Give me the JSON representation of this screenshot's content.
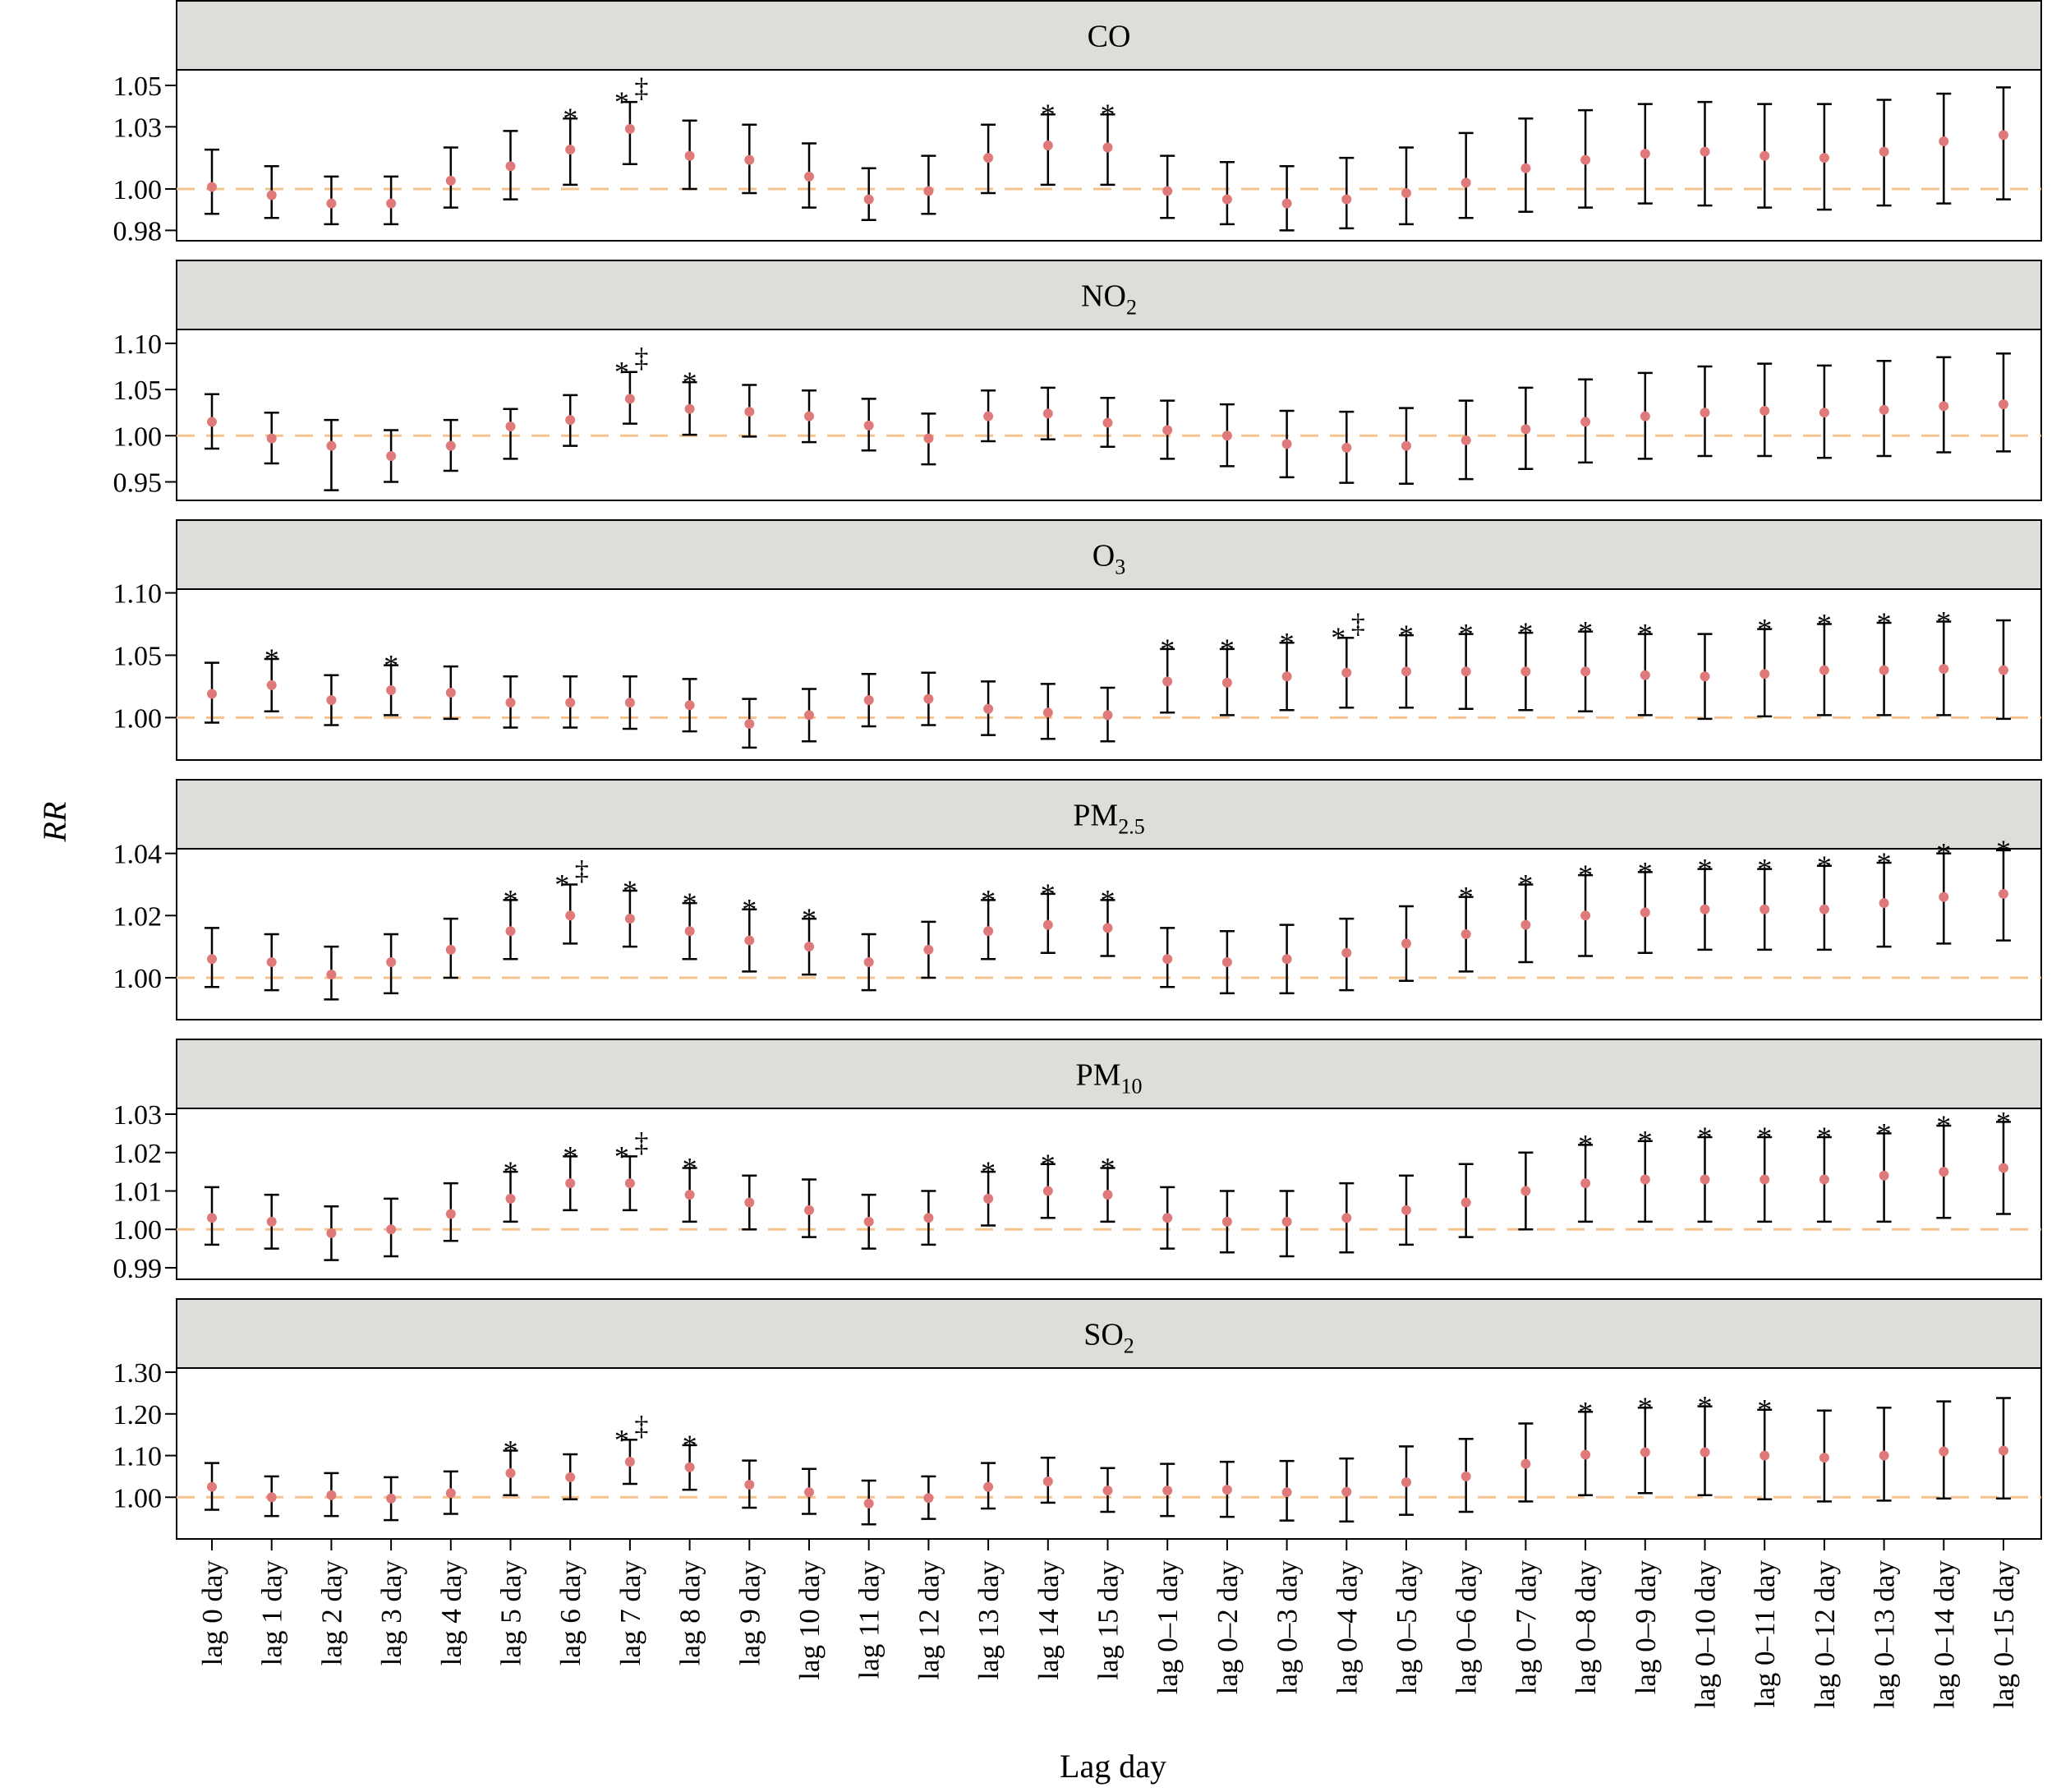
{
  "colors": {
    "header_fill": "#dcdfd9",
    "point": "#e07a7a",
    "reference_line": "#f5c48e",
    "significance_star": "#000000",
    "double_dagger": "#e8191b"
  },
  "chart_data": {
    "type": "errorbar",
    "ylabel": "RR",
    "xlabel": "Lag day",
    "reference_value": 1.0,
    "categories": [
      "lag 0 day",
      "lag 1 day",
      "lag 2 day",
      "lag 3 day",
      "lag 4 day",
      "lag 5 day",
      "lag 6 day",
      "lag 7 day",
      "lag 8 day",
      "lag 9 day",
      "lag 10 day",
      "lag 11 day",
      "lag 12 day",
      "lag 13 day",
      "lag 14 day",
      "lag 15 day",
      "lag 0–1 day",
      "lag 0–2 day",
      "lag 0–3 day",
      "lag 0–4 day",
      "lag 0–5 day",
      "lag 0–6 day",
      "lag 0–7 day",
      "lag 0–8 day",
      "lag 0–9 day",
      "lag 0–10 day",
      "lag 0–11 day",
      "lag 0–12 day",
      "lag 0–13 day",
      "lag 0–14 day",
      "lag 0–15 day"
    ],
    "panels": [
      {
        "name": "CO",
        "sub": "",
        "ylim": [
          0.975,
          1.0575
        ],
        "yticks": [
          0.98,
          1.0,
          1.03,
          1.05
        ],
        "ytick_labels": [
          "0.98",
          "1.00",
          "1.03",
          "1.05"
        ],
        "rr": [
          1.001,
          0.997,
          0.993,
          0.993,
          1.004,
          1.011,
          1.019,
          1.029,
          1.016,
          1.014,
          1.006,
          0.995,
          0.999,
          1.015,
          1.021,
          1.02,
          0.999,
          0.995,
          0.993,
          0.995,
          0.998,
          1.003,
          1.01,
          1.014,
          1.017,
          1.018,
          1.016,
          1.015,
          1.018,
          1.023,
          1.026
        ],
        "lower": [
          0.988,
          0.986,
          0.983,
          0.983,
          0.991,
          0.995,
          1.002,
          1.012,
          1.0,
          0.998,
          0.991,
          0.985,
          0.988,
          0.998,
          1.002,
          1.002,
          0.986,
          0.983,
          0.98,
          0.981,
          0.983,
          0.986,
          0.989,
          0.991,
          0.993,
          0.992,
          0.991,
          0.99,
          0.992,
          0.993,
          0.995
        ],
        "upper": [
          1.019,
          1.011,
          1.006,
          1.006,
          1.02,
          1.028,
          1.034,
          1.042,
          1.033,
          1.031,
          1.022,
          1.01,
          1.016,
          1.031,
          1.036,
          1.036,
          1.016,
          1.013,
          1.011,
          1.015,
          1.02,
          1.027,
          1.034,
          1.038,
          1.041,
          1.042,
          1.041,
          1.041,
          1.043,
          1.046,
          1.049
        ],
        "star": [
          0,
          0,
          0,
          0,
          0,
          0,
          1,
          1,
          0,
          0,
          0,
          0,
          0,
          0,
          1,
          1,
          0,
          0,
          0,
          0,
          0,
          0,
          0,
          0,
          0,
          0,
          0,
          0,
          0,
          0,
          0
        ],
        "dagger": [
          0,
          0,
          0,
          0,
          0,
          0,
          0,
          1,
          0,
          0,
          0,
          0,
          0,
          0,
          0,
          0,
          0,
          0,
          0,
          0,
          0,
          0,
          0,
          0,
          0,
          0,
          0,
          0,
          0,
          0,
          0
        ]
      },
      {
        "name": "NO",
        "sub": "2",
        "ylim": [
          0.93,
          1.115
        ],
        "yticks": [
          0.95,
          1.0,
          1.05,
          1.1
        ],
        "ytick_labels": [
          "0.95",
          "1.00",
          "1.05",
          "1.10"
        ],
        "rr": [
          1.015,
          0.997,
          0.989,
          0.978,
          0.989,
          1.01,
          1.017,
          1.04,
          1.029,
          1.026,
          1.021,
          1.011,
          0.997,
          1.021,
          1.024,
          1.014,
          1.006,
          1.0,
          0.991,
          0.987,
          0.989,
          0.995,
          1.007,
          1.015,
          1.021,
          1.025,
          1.027,
          1.025,
          1.028,
          1.032,
          1.034
        ],
        "lower": [
          0.986,
          0.97,
          0.941,
          0.95,
          0.962,
          0.975,
          0.989,
          1.013,
          1.001,
          0.999,
          0.993,
          0.984,
          0.969,
          0.994,
          0.996,
          0.988,
          0.975,
          0.967,
          0.955,
          0.949,
          0.948,
          0.953,
          0.964,
          0.971,
          0.975,
          0.978,
          0.978,
          0.976,
          0.978,
          0.982,
          0.983
        ],
        "upper": [
          1.045,
          1.025,
          1.017,
          1.006,
          1.017,
          1.029,
          1.044,
          1.069,
          1.058,
          1.055,
          1.049,
          1.04,
          1.024,
          1.049,
          1.052,
          1.041,
          1.038,
          1.034,
          1.027,
          1.026,
          1.03,
          1.038,
          1.052,
          1.061,
          1.068,
          1.075,
          1.078,
          1.076,
          1.081,
          1.085,
          1.089
        ],
        "star": [
          0,
          0,
          0,
          0,
          0,
          0,
          0,
          1,
          1,
          0,
          0,
          0,
          0,
          0,
          0,
          0,
          0,
          0,
          0,
          0,
          0,
          0,
          0,
          0,
          0,
          0,
          0,
          0,
          0,
          0,
          0
        ],
        "dagger": [
          0,
          0,
          0,
          0,
          0,
          0,
          0,
          1,
          0,
          0,
          0,
          0,
          0,
          0,
          0,
          0,
          0,
          0,
          0,
          0,
          0,
          0,
          0,
          0,
          0,
          0,
          0,
          0,
          0,
          0,
          0
        ]
      },
      {
        "name": "O",
        "sub": "3",
        "ylim": [
          0.966,
          1.103
        ],
        "yticks": [
          1.0,
          1.05,
          1.1
        ],
        "ytick_labels": [
          "1.00",
          "1.05",
          "1.10"
        ],
        "rr": [
          1.019,
          1.026,
          1.014,
          1.022,
          1.02,
          1.012,
          1.012,
          1.012,
          1.01,
          0.995,
          1.002,
          1.014,
          1.015,
          1.007,
          1.004,
          1.002,
          1.029,
          1.028,
          1.033,
          1.036,
          1.037,
          1.037,
          1.037,
          1.037,
          1.034,
          1.033,
          1.035,
          1.038,
          1.038,
          1.039,
          1.038
        ],
        "lower": [
          0.996,
          1.005,
          0.994,
          1.002,
          0.999,
          0.992,
          0.992,
          0.991,
          0.989,
          0.976,
          0.981,
          0.993,
          0.994,
          0.986,
          0.983,
          0.981,
          1.004,
          1.002,
          1.006,
          1.008,
          1.008,
          1.007,
          1.006,
          1.005,
          1.002,
          0.999,
          1.001,
          1.002,
          1.002,
          1.002,
          0.999
        ],
        "upper": [
          1.044,
          1.047,
          1.034,
          1.042,
          1.041,
          1.033,
          1.033,
          1.033,
          1.031,
          1.015,
          1.023,
          1.035,
          1.036,
          1.029,
          1.027,
          1.024,
          1.055,
          1.055,
          1.06,
          1.064,
          1.066,
          1.067,
          1.068,
          1.069,
          1.067,
          1.067,
          1.071,
          1.075,
          1.076,
          1.077,
          1.078
        ],
        "star": [
          0,
          1,
          0,
          1,
          0,
          0,
          0,
          0,
          0,
          0,
          0,
          0,
          0,
          0,
          0,
          0,
          1,
          1,
          1,
          1,
          1,
          1,
          1,
          1,
          1,
          0,
          1,
          1,
          1,
          1,
          0
        ],
        "dagger": [
          0,
          0,
          0,
          0,
          0,
          0,
          0,
          0,
          0,
          0,
          0,
          0,
          0,
          0,
          0,
          0,
          0,
          0,
          0,
          1,
          0,
          0,
          0,
          0,
          0,
          0,
          0,
          0,
          0,
          0,
          0
        ]
      },
      {
        "name": "PM",
        "sub": "2.5",
        "ylim": [
          0.9865,
          1.0415
        ],
        "yticks": [
          1.0,
          1.02,
          1.04
        ],
        "ytick_labels": [
          "1.00",
          "1.02",
          "1.04"
        ],
        "rr": [
          1.006,
          1.005,
          1.001,
          1.005,
          1.009,
          1.015,
          1.02,
          1.019,
          1.015,
          1.012,
          1.01,
          1.005,
          1.009,
          1.015,
          1.017,
          1.016,
          1.006,
          1.005,
          1.006,
          1.008,
          1.011,
          1.014,
          1.017,
          1.02,
          1.021,
          1.022,
          1.022,
          1.022,
          1.024,
          1.026,
          1.027
        ],
        "lower": [
          0.997,
          0.996,
          0.993,
          0.995,
          1.0,
          1.006,
          1.011,
          1.01,
          1.006,
          1.002,
          1.001,
          0.996,
          1.0,
          1.006,
          1.008,
          1.007,
          0.997,
          0.995,
          0.995,
          0.996,
          0.999,
          1.002,
          1.005,
          1.007,
          1.008,
          1.009,
          1.009,
          1.009,
          1.01,
          1.011,
          1.012
        ],
        "upper": [
          1.016,
          1.014,
          1.01,
          1.014,
          1.019,
          1.025,
          1.03,
          1.028,
          1.024,
          1.022,
          1.019,
          1.014,
          1.018,
          1.025,
          1.027,
          1.025,
          1.016,
          1.015,
          1.017,
          1.019,
          1.023,
          1.026,
          1.03,
          1.033,
          1.034,
          1.035,
          1.035,
          1.036,
          1.037,
          1.04,
          1.041
        ],
        "star": [
          0,
          0,
          0,
          0,
          0,
          1,
          1,
          1,
          1,
          1,
          1,
          0,
          0,
          1,
          1,
          1,
          0,
          0,
          0,
          0,
          0,
          1,
          1,
          1,
          1,
          1,
          1,
          1,
          1,
          1,
          1
        ],
        "dagger": [
          0,
          0,
          0,
          0,
          0,
          0,
          1,
          0,
          0,
          0,
          0,
          0,
          0,
          0,
          0,
          0,
          0,
          0,
          0,
          0,
          0,
          0,
          0,
          0,
          0,
          0,
          0,
          0,
          0,
          0,
          0
        ]
      },
      {
        "name": "PM",
        "sub": "10",
        "ylim": [
          0.987,
          1.0315
        ],
        "yticks": [
          0.99,
          1.0,
          1.01,
          1.02,
          1.03
        ],
        "ytick_labels": [
          "0.99",
          "1.00",
          "1.01",
          "1.02",
          "1.03"
        ],
        "rr": [
          1.003,
          1.002,
          0.999,
          1.0,
          1.004,
          1.008,
          1.012,
          1.012,
          1.009,
          1.007,
          1.005,
          1.002,
          1.003,
          1.008,
          1.01,
          1.009,
          1.003,
          1.002,
          1.002,
          1.003,
          1.005,
          1.007,
          1.01,
          1.012,
          1.013,
          1.013,
          1.013,
          1.013,
          1.014,
          1.015,
          1.016
        ],
        "lower": [
          0.996,
          0.995,
          0.992,
          0.993,
          0.997,
          1.002,
          1.005,
          1.005,
          1.002,
          1.0,
          0.998,
          0.995,
          0.996,
          1.001,
          1.003,
          1.002,
          0.995,
          0.994,
          0.993,
          0.994,
          0.996,
          0.998,
          1.0,
          1.002,
          1.002,
          1.002,
          1.002,
          1.002,
          1.002,
          1.003,
          1.004
        ],
        "upper": [
          1.011,
          1.009,
          1.006,
          1.008,
          1.012,
          1.015,
          1.019,
          1.019,
          1.016,
          1.014,
          1.013,
          1.009,
          1.01,
          1.015,
          1.017,
          1.016,
          1.011,
          1.01,
          1.01,
          1.012,
          1.014,
          1.017,
          1.02,
          1.022,
          1.023,
          1.024,
          1.024,
          1.024,
          1.025,
          1.027,
          1.028
        ],
        "star": [
          0,
          0,
          0,
          0,
          0,
          1,
          1,
          1,
          1,
          0,
          0,
          0,
          0,
          1,
          1,
          1,
          0,
          0,
          0,
          0,
          0,
          0,
          0,
          1,
          1,
          1,
          1,
          1,
          1,
          1,
          1
        ],
        "dagger": [
          0,
          0,
          0,
          0,
          0,
          0,
          0,
          1,
          0,
          0,
          0,
          0,
          0,
          0,
          0,
          0,
          0,
          0,
          0,
          0,
          0,
          0,
          0,
          0,
          0,
          0,
          0,
          0,
          0,
          0,
          0
        ]
      },
      {
        "name": "SO",
        "sub": "2",
        "ylim": [
          0.9,
          1.31
        ],
        "yticks": [
          1.0,
          1.1,
          1.2,
          1.3
        ],
        "ytick_labels": [
          "1.00",
          "1.10",
          "1.20",
          "1.30"
        ],
        "rr": [
          1.025,
          1.0,
          1.005,
          0.997,
          1.01,
          1.058,
          1.048,
          1.085,
          1.072,
          1.03,
          1.012,
          0.985,
          0.998,
          1.025,
          1.038,
          1.016,
          1.016,
          1.018,
          1.012,
          1.013,
          1.036,
          1.05,
          1.08,
          1.102,
          1.108,
          1.108,
          1.1,
          1.095,
          1.1,
          1.11,
          1.112
        ],
        "lower": [
          0.97,
          0.955,
          0.955,
          0.945,
          0.96,
          1.005,
          0.995,
          1.032,
          1.018,
          0.975,
          0.96,
          0.935,
          0.948,
          0.973,
          0.987,
          0.965,
          0.955,
          0.953,
          0.944,
          0.942,
          0.958,
          0.965,
          0.99,
          1.005,
          1.01,
          1.005,
          0.995,
          0.99,
          0.992,
          0.997,
          0.997
        ],
        "upper": [
          1.082,
          1.05,
          1.058,
          1.048,
          1.062,
          1.112,
          1.103,
          1.138,
          1.125,
          1.088,
          1.068,
          1.04,
          1.05,
          1.082,
          1.095,
          1.07,
          1.08,
          1.085,
          1.087,
          1.093,
          1.122,
          1.14,
          1.177,
          1.205,
          1.215,
          1.218,
          1.21,
          1.208,
          1.215,
          1.23,
          1.238
        ],
        "star": [
          0,
          0,
          0,
          0,
          0,
          1,
          0,
          1,
          1,
          0,
          0,
          0,
          0,
          0,
          0,
          0,
          0,
          0,
          0,
          0,
          0,
          0,
          0,
          1,
          1,
          1,
          1,
          0,
          0,
          0,
          0
        ],
        "dagger": [
          0,
          0,
          0,
          0,
          0,
          0,
          0,
          1,
          0,
          0,
          0,
          0,
          0,
          0,
          0,
          0,
          0,
          0,
          0,
          0,
          0,
          0,
          0,
          0,
          0,
          0,
          0,
          0,
          0,
          0,
          0
        ]
      }
    ]
  }
}
